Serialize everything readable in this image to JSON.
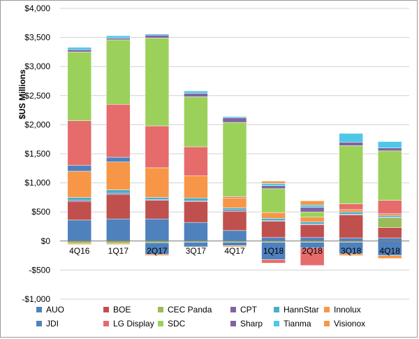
{
  "chart_data": {
    "type": "bar",
    "stacked": true,
    "title": "",
    "xlabel": "",
    "ylabel": "$US Millions",
    "ylim": [
      -1000,
      4000
    ],
    "yticks": [
      -1000,
      -500,
      0,
      500,
      1000,
      1500,
      2000,
      2500,
      3000,
      3500,
      4000
    ],
    "ytick_labels": [
      "-$1,000",
      "-$500",
      "$0",
      "$500",
      "$1,000",
      "$1,500",
      "$2,000",
      "$2,500",
      "$3,000",
      "$3,500",
      "$4,000"
    ],
    "grid": true,
    "legend_position": "bottom",
    "categories": [
      "4Q16",
      "1Q17",
      "2Q17",
      "3Q17",
      "4Q17",
      "1Q18",
      "2Q18",
      "3Q18",
      "4Q18"
    ],
    "series": [
      {
        "name": "AUO",
        "color": "#4f81bd",
        "values": [
          360,
          380,
          380,
          320,
          180,
          60,
          60,
          50,
          50
        ]
      },
      {
        "name": "BOE",
        "color": "#c0504d",
        "values": [
          320,
          420,
          320,
          360,
          330,
          280,
          220,
          400,
          180
        ]
      },
      {
        "name": "CEC Panda",
        "color": "#9bbb59",
        "values": [
          -40,
          -40,
          -30,
          -20,
          -20,
          -20,
          -20,
          -20,
          170
        ]
      },
      {
        "name": "CPT",
        "color": "#8064a2",
        "values": [
          20,
          20,
          10,
          10,
          20,
          10,
          10,
          10,
          10
        ]
      },
      {
        "name": "HannStar",
        "color": "#4bacc6",
        "values": [
          50,
          60,
          40,
          50,
          40,
          40,
          40,
          40,
          30
        ]
      },
      {
        "name": "Innolux",
        "color": "#f79646",
        "values": [
          450,
          480,
          510,
          380,
          170,
          100,
          80,
          40,
          30
        ]
      },
      {
        "name": "JDI",
        "color": "#4f81bd",
        "values": [
          100,
          80,
          -200,
          -80,
          -60,
          -300,
          -100,
          -200,
          -250
        ]
      },
      {
        "name": "LG Display",
        "color": "#e66b6b",
        "values": [
          770,
          910,
          720,
          500,
          20,
          -60,
          -300,
          100,
          230
        ]
      },
      {
        "name": "SDC",
        "color": "#9bd15a",
        "values": [
          1180,
          1110,
          1510,
          860,
          1280,
          410,
          90,
          1000,
          850
        ]
      },
      {
        "name": "Sharp",
        "color": "#8064a2",
        "values": [
          40,
          30,
          50,
          60,
          80,
          50,
          80,
          60,
          50
        ]
      },
      {
        "name": "Tianma",
        "color": "#4fc8e8",
        "values": [
          40,
          40,
          20,
          40,
          20,
          40,
          40,
          150,
          110
        ]
      },
      {
        "name": "Visionox",
        "color": "#f79646",
        "values": [
          -20,
          -20,
          -20,
          -10,
          -20,
          40,
          70,
          -30,
          -50
        ]
      }
    ]
  }
}
